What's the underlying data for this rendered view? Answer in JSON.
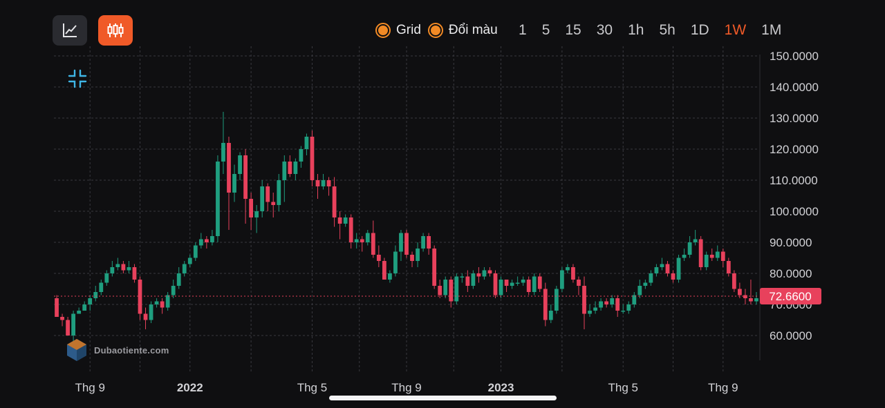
{
  "toolbar": {
    "line_icon": "line-chart-icon",
    "candle_icon": "candlestick-icon",
    "collapse_icon": "collapse-arrows-icon"
  },
  "options": [
    {
      "label": "Grid",
      "checked": true
    },
    {
      "label": "Đổi màu",
      "checked": true
    }
  ],
  "intervals": [
    {
      "label": "1",
      "active": false
    },
    {
      "label": "5",
      "active": false
    },
    {
      "label": "15",
      "active": false
    },
    {
      "label": "30",
      "active": false
    },
    {
      "label": "1h",
      "active": false
    },
    {
      "label": "5h",
      "active": false
    },
    {
      "label": "1D",
      "active": false
    },
    {
      "label": "1W",
      "active": true
    },
    {
      "label": "1M",
      "active": false
    }
  ],
  "watermark": "Dubaotiente.com",
  "colors": {
    "background": "#0f0f11",
    "up": "#1f9e7f",
    "down": "#e8415c",
    "accent": "#f05a28",
    "radio": "#f28a25",
    "grid": "#3a3a40",
    "price_line": "#e8415c",
    "collapse_icon": "#3fb6e6"
  },
  "chart_data": {
    "type": "candlestick",
    "grid": true,
    "ylim": [
      50,
      150
    ],
    "yticks": [
      "150.0000",
      "140.0000",
      "130.0000",
      "120.0000",
      "110.0000",
      "100.0000",
      "90.0000",
      "80.0000",
      "70.0000",
      "60.0000"
    ],
    "ytick_values": [
      150,
      140,
      130,
      120,
      110,
      100,
      90,
      80,
      70,
      60
    ],
    "current_price": 72.66,
    "current_price_label": "72.6600",
    "x_labels": [
      {
        "label": "Thg 9",
        "bold": false,
        "index": 6
      },
      {
        "label": "2022",
        "bold": true,
        "index": 24
      },
      {
        "label": "Thg 5",
        "bold": false,
        "index": 46
      },
      {
        "label": "Thg 9",
        "bold": false,
        "index": 63
      },
      {
        "label": "2023",
        "bold": true,
        "index": 80
      },
      {
        "label": "Thg 5",
        "bold": false,
        "index": 102
      },
      {
        "label": "Thg 9",
        "bold": false,
        "index": 120
      }
    ],
    "candles": [
      [
        72,
        66,
        73,
        66
      ],
      [
        66,
        65,
        67,
        63
      ],
      [
        65,
        60,
        66,
        60
      ],
      [
        60,
        67,
        68,
        58
      ],
      [
        67,
        68,
        69,
        67
      ],
      [
        68,
        70,
        71,
        68
      ],
      [
        70,
        72,
        73,
        68
      ],
      [
        72,
        74,
        76,
        71
      ],
      [
        74,
        77,
        78,
        73
      ],
      [
        77,
        80,
        81,
        76
      ],
      [
        80,
        82,
        84,
        79
      ],
      [
        82,
        83,
        85,
        81
      ],
      [
        83,
        81,
        84,
        80
      ],
      [
        81,
        82,
        84,
        80
      ],
      [
        82,
        78,
        83,
        77
      ],
      [
        78,
        67,
        79,
        65
      ],
      [
        67,
        65,
        69,
        62
      ],
      [
        65,
        70,
        71,
        64
      ],
      [
        70,
        71,
        72,
        69
      ],
      [
        71,
        69,
        72,
        67
      ],
      [
        69,
        73,
        74,
        68
      ],
      [
        73,
        76,
        78,
        72
      ],
      [
        76,
        80,
        82,
        75
      ],
      [
        80,
        83,
        84,
        79
      ],
      [
        83,
        85,
        86,
        82
      ],
      [
        85,
        89,
        90,
        84
      ],
      [
        89,
        91,
        93,
        88
      ],
      [
        91,
        90,
        92,
        88
      ],
      [
        90,
        92,
        94,
        89
      ],
      [
        92,
        116,
        118,
        90
      ],
      [
        116,
        122,
        132,
        112
      ],
      [
        122,
        106,
        124,
        94
      ],
      [
        106,
        112,
        115,
        103
      ],
      [
        112,
        118,
        119,
        110
      ],
      [
        118,
        104,
        120,
        96
      ],
      [
        104,
        98,
        106,
        94
      ],
      [
        98,
        100,
        102,
        93
      ],
      [
        100,
        108,
        110,
        98
      ],
      [
        108,
        103,
        109,
        100
      ],
      [
        103,
        102,
        106,
        98
      ],
      [
        102,
        110,
        112,
        100
      ],
      [
        110,
        116,
        118,
        103
      ],
      [
        116,
        112,
        118,
        111
      ],
      [
        112,
        116,
        117,
        110
      ],
      [
        116,
        120,
        121,
        114
      ],
      [
        120,
        124,
        125,
        118
      ],
      [
        124,
        110,
        126,
        108
      ],
      [
        110,
        108,
        112,
        104
      ],
      [
        108,
        110,
        112,
        107
      ],
      [
        110,
        108,
        111,
        105
      ],
      [
        108,
        98,
        111,
        95
      ],
      [
        98,
        96,
        100,
        91
      ],
      [
        96,
        98,
        99,
        95
      ],
      [
        98,
        90,
        99,
        88
      ],
      [
        90,
        91,
        93,
        88
      ],
      [
        91,
        90,
        92,
        87
      ],
      [
        90,
        93,
        94,
        89
      ],
      [
        93,
        86,
        97,
        85
      ],
      [
        86,
        84,
        89,
        82
      ],
      [
        84,
        78,
        85,
        78
      ],
      [
        78,
        80,
        81,
        77
      ],
      [
        80,
        87,
        89,
        79
      ],
      [
        87,
        93,
        94,
        84
      ],
      [
        93,
        86,
        94,
        85
      ],
      [
        86,
        84,
        87,
        82
      ],
      [
        84,
        88,
        90,
        82
      ],
      [
        88,
        92,
        93,
        87
      ],
      [
        92,
        88,
        93,
        86
      ],
      [
        88,
        76,
        89,
        75
      ],
      [
        76,
        73,
        78,
        72
      ],
      [
        73,
        78,
        79,
        72
      ],
      [
        78,
        71,
        79,
        69
      ],
      [
        71,
        79,
        80,
        70
      ],
      [
        79,
        79,
        80,
        77
      ],
      [
        79,
        76,
        81,
        74
      ],
      [
        76,
        80,
        81,
        75
      ],
      [
        80,
        79,
        82,
        77
      ],
      [
        79,
        81,
        82,
        78
      ],
      [
        81,
        80,
        82,
        79
      ],
      [
        80,
        73,
        81,
        72
      ],
      [
        73,
        78,
        79,
        72
      ],
      [
        78,
        76,
        78,
        74
      ],
      [
        76,
        77,
        78,
        75
      ],
      [
        77,
        77,
        79,
        76
      ],
      [
        77,
        78,
        79,
        76
      ],
      [
        78,
        74,
        79,
        73
      ],
      [
        74,
        79,
        80,
        73
      ],
      [
        79,
        75,
        80,
        74
      ],
      [
        75,
        65,
        77,
        63
      ],
      [
        65,
        68,
        70,
        64
      ],
      [
        68,
        75,
        76,
        67
      ],
      [
        75,
        81,
        82,
        74
      ],
      [
        81,
        82,
        83,
        80
      ],
      [
        82,
        78,
        83,
        77
      ],
      [
        78,
        76,
        79,
        73
      ],
      [
        76,
        67,
        79,
        62
      ],
      [
        67,
        68,
        70,
        66
      ],
      [
        68,
        69,
        71,
        67
      ],
      [
        69,
        71,
        72,
        68
      ],
      [
        71,
        70,
        72,
        69
      ],
      [
        70,
        72,
        73,
        69
      ],
      [
        72,
        68,
        73,
        66
      ],
      [
        68,
        68,
        70,
        67
      ],
      [
        68,
        70,
        71,
        67
      ],
      [
        70,
        73,
        74,
        69
      ],
      [
        73,
        76,
        78,
        72
      ],
      [
        76,
        77,
        78,
        75
      ],
      [
        77,
        80,
        81,
        76
      ],
      [
        80,
        82,
        83,
        79
      ],
      [
        82,
        83,
        85,
        81
      ],
      [
        83,
        80,
        84,
        79
      ],
      [
        80,
        78,
        81,
        77
      ],
      [
        78,
        85,
        86,
        77
      ],
      [
        85,
        86,
        88,
        84
      ],
      [
        86,
        90,
        92,
        85
      ],
      [
        90,
        91,
        94,
        89
      ],
      [
        91,
        82,
        92,
        81
      ],
      [
        82,
        86,
        87,
        81
      ],
      [
        86,
        85,
        88,
        84
      ],
      [
        85,
        87,
        89,
        84
      ],
      [
        87,
        84,
        88,
        82
      ],
      [
        84,
        80,
        85,
        79
      ],
      [
        80,
        75,
        81,
        74
      ],
      [
        75,
        73,
        77,
        72
      ],
      [
        73,
        72,
        75,
        70
      ],
      [
        72,
        71,
        78,
        70
      ],
      [
        71,
        72,
        74,
        70
      ]
    ]
  }
}
